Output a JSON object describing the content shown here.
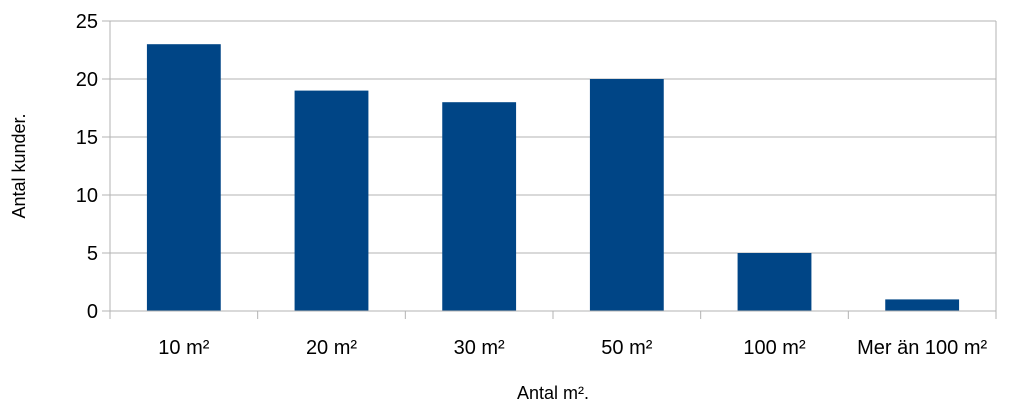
{
  "chart_data": {
    "type": "bar",
    "categories": [
      "10 m²",
      "20 m²",
      "30 m²",
      "50 m²",
      "100 m²",
      "Mer än 100 m²"
    ],
    "values": [
      23,
      19,
      18,
      20,
      5,
      1
    ],
    "title": "",
    "xlabel": "Antal m².",
    "ylabel": "Antal kunder.",
    "ylim": [
      0,
      25
    ],
    "yticks": [
      "0",
      "5",
      "10",
      "15",
      "20",
      "25"
    ],
    "grid": true,
    "legend": "none",
    "bar_color": "#004586"
  }
}
